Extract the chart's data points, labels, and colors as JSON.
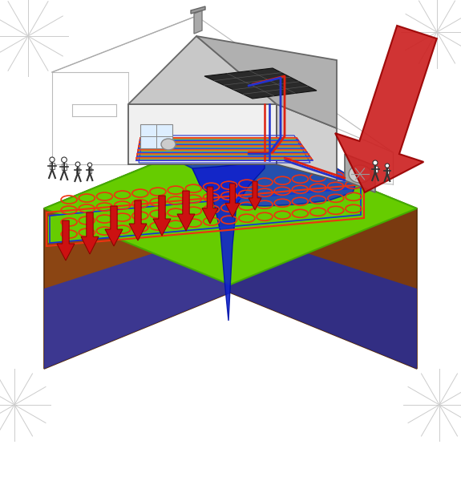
{
  "bg_color": "#ffffff",
  "green_grass": "#66cc00",
  "green_grass_dark": "#44aa00",
  "brown_soil": "#8b4513",
  "brown_soil_dark": "#6b3010",
  "blue_deep": "#2244cc",
  "blue_underground": "#3355dd",
  "pipe_red": "#dd2211",
  "pipe_blue": "#2233cc",
  "coil_red": "#ee3311",
  "coil_blue": "#1133dd",
  "floor_red": "#ee4422",
  "floor_blue": "#2244ee",
  "arrow_red": "#cc1111",
  "solar_dark": "#333333",
  "wall_light": "#e8e8e8",
  "wall_mid": "#cccccc",
  "wall_dark": "#aaaaaa",
  "roof_light": "#bbbbbb",
  "roof_dark": "#777777",
  "sketch_color": "#bbbbbb",
  "star_color": "#cccccc"
}
